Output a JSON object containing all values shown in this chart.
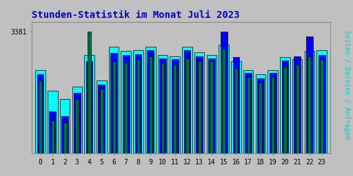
{
  "title": "Stunden-Statistik im Monat Juli 2023",
  "title_color": "#0000cc",
  "ylabel": "Seiten / Dateien / Anfragen",
  "ylabel_color": "#00cccc",
  "background_color": "#c0c0c0",
  "plot_bg_color": "#c0c0c0",
  "ytick_label": "3381",
  "hours": [
    0,
    1,
    2,
    3,
    4,
    5,
    6,
    7,
    8,
    9,
    10,
    11,
    12,
    13,
    14,
    15,
    16,
    17,
    18,
    19,
    20,
    21,
    22,
    23
  ],
  "seiten": [
    3200,
    3100,
    3060,
    3120,
    3270,
    3150,
    3310,
    3290,
    3295,
    3310,
    3270,
    3265,
    3310,
    3285,
    3270,
    3320,
    3240,
    3200,
    3180,
    3200,
    3260,
    3250,
    3290,
    3295
  ],
  "dateien": [
    3180,
    3000,
    2980,
    3090,
    3240,
    3130,
    3280,
    3270,
    3275,
    3295,
    3255,
    3250,
    3295,
    3265,
    3255,
    3381,
    3260,
    3185,
    3160,
    3185,
    3245,
    3265,
    3360,
    3270
  ],
  "anfragen": [
    3150,
    2960,
    2950,
    3060,
    3381,
    3110,
    3240,
    3235,
    3250,
    3265,
    3230,
    3225,
    3255,
    3240,
    3240,
    3300,
    3210,
    3165,
    3140,
    3165,
    3215,
    3225,
    3265,
    3250
  ],
  "color_seiten": "#00ffff",
  "color_dateien": "#0000ff",
  "color_anfragen": "#007040",
  "edge_color": "#000000",
  "ymin": 2800,
  "ymax": 3430,
  "ytick_pos": 3381
}
